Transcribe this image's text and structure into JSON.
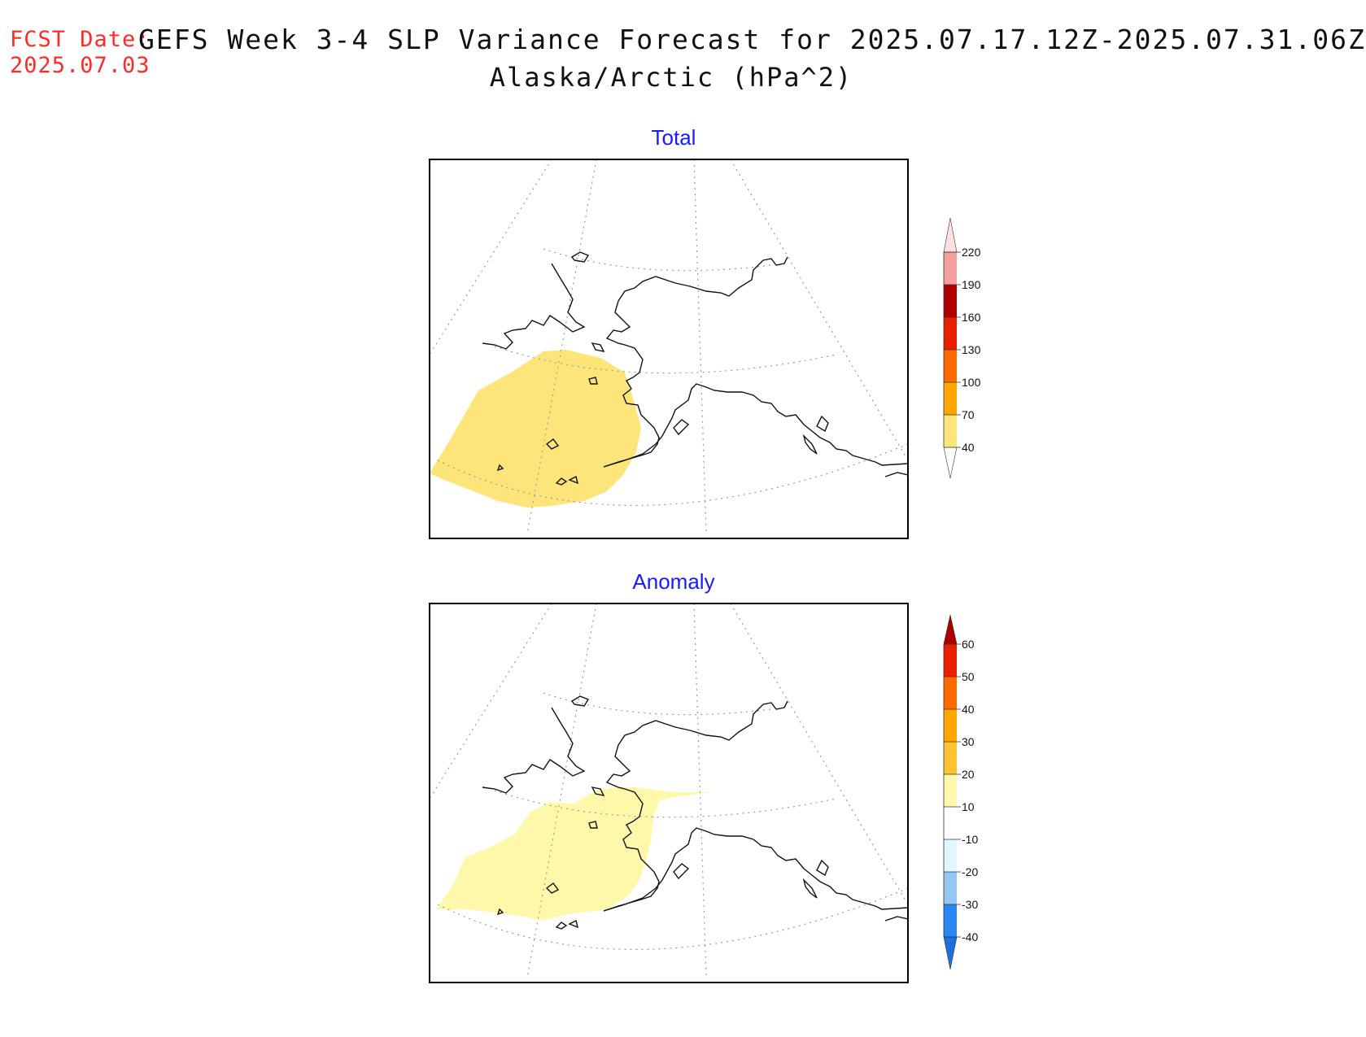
{
  "header": {
    "fcst_label": "FCST Date:",
    "fcst_date": "2025.07.03",
    "title_line1": "GEFS Week 3-4 SLP Variance Forecast for 2025.07.17.12Z-2025.07.31.06Z",
    "title_line2": "Alaska/Arctic (hPa^2)"
  },
  "panels": [
    {
      "title": "Total",
      "title_color": "#1a1aff",
      "shaded_region_color": "#fde57a",
      "colorbar": {
        "labels": [
          "40",
          "70",
          "100",
          "130",
          "160",
          "190",
          "220"
        ],
        "colors": [
          "#ffffff",
          "#fde57a",
          "#ffa500",
          "#ff6a00",
          "#e82000",
          "#b00000",
          "#f4a0a0",
          "#ffe0e0"
        ]
      }
    },
    {
      "title": "Anomaly",
      "title_color": "#1a1aff",
      "shaded_region_color": "#fff8aa",
      "colorbar": {
        "labels": [
          "-40",
          "-30",
          "-20",
          "-10",
          "10",
          "20",
          "30",
          "40",
          "50",
          "60"
        ],
        "colors": [
          "#1e6fe0",
          "#2a86f2",
          "#96c8f5",
          "#dff6ff",
          "#ffffff",
          "#fff8aa",
          "#ffc233",
          "#ffa500",
          "#ff6a00",
          "#e82000",
          "#aa0000"
        ]
      }
    }
  ]
}
